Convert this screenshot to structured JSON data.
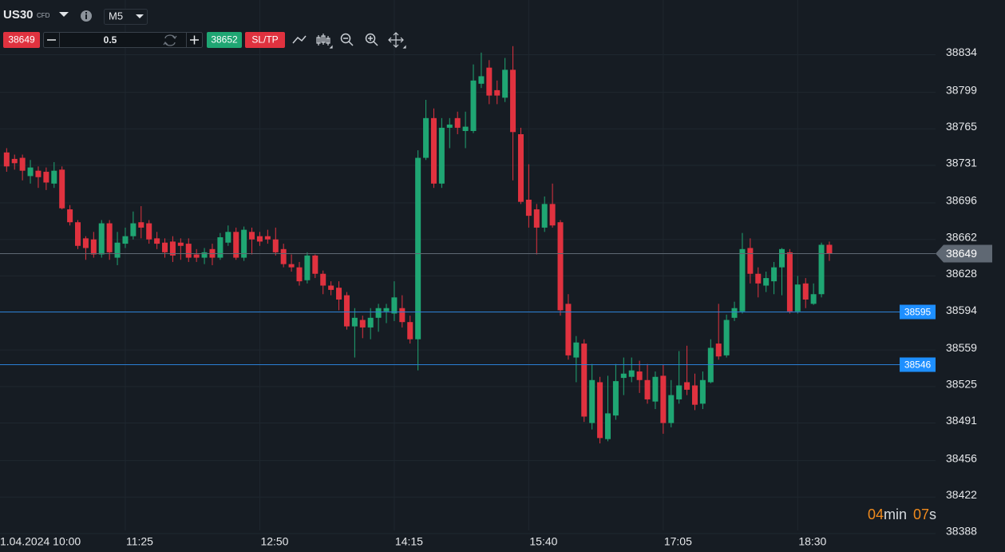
{
  "toolbar": {
    "symbol": "US30",
    "badge": "CFD",
    "timeframe": "M5",
    "bid": 38649,
    "lots": 0.5,
    "ask": 38652,
    "sltp": "SL/TP"
  },
  "timer": {
    "minutes": "04",
    "min_unit": "min",
    "seconds": "07",
    "sec_unit": "s"
  },
  "chart_data": {
    "type": "candlestick",
    "categories": [
      "1.04.2024 10:00",
      null,
      null,
      null,
      null,
      null,
      null,
      null,
      null,
      null,
      null,
      null,
      null,
      null,
      null,
      null,
      null,
      "11:25",
      null,
      null,
      null,
      null,
      null,
      null,
      null,
      null,
      null,
      null,
      null,
      null,
      null,
      null,
      null,
      null,
      "12:50",
      null,
      null,
      null,
      null,
      null,
      null,
      null,
      null,
      null,
      null,
      null,
      null,
      null,
      null,
      null,
      null,
      "14:15",
      null,
      null,
      null,
      null,
      null,
      null,
      null,
      null,
      null,
      null,
      null,
      null,
      null,
      null,
      null,
      null,
      "15:40",
      null,
      null,
      null,
      null,
      null,
      null,
      null,
      null,
      null,
      null,
      null,
      null,
      null,
      null,
      null,
      null,
      "17:05",
      null,
      null,
      null,
      null,
      null,
      null,
      null,
      null,
      null,
      null,
      null,
      null,
      null,
      null,
      null,
      null,
      "18:30",
      null,
      null,
      null,
      null
    ],
    "open": [
      null,
      null,
      38743,
      38737,
      38738,
      38721,
      38726,
      38725,
      38714,
      38727,
      38690,
      38678,
      38663,
      38662,
      38648,
      38677,
      38645,
      38658,
      38665,
      38678,
      38677,
      38663,
      38659,
      38660,
      38659,
      38658,
      38648,
      38645,
      38653,
      38645,
      38659,
      38669,
      38645,
      38669,
      38665,
      38665,
      38662,
      38653,
      38639,
      38636,
      38624,
      38647,
      38630,
      38619,
      38617,
      38610,
      38581,
      38587,
      38580,
      38589,
      38595,
      38593,
      38598,
      38585,
      38569,
      38738,
      38775,
      38714,
      38766,
      38775,
      38763,
      38763,
      38807,
      38822,
      38801,
      38794,
      38820,
      38760,
      38699,
      38690,
      38673,
      38695,
      38678,
      38602,
      38552,
      38565,
      38491,
      38529,
      38476,
      38498,
      38533,
      38534,
      38539,
      38531,
      38511,
      38535,
      38491,
      38513,
      38529,
      38526,
      38509,
      38529,
      38565,
      38554,
      38589,
      38595,
      38654,
      38630,
      38619,
      38623,
      38636,
      38650,
      38595,
      38621,
      38602,
      38611,
      38657
    ],
    "high": [
      null,
      null,
      38747,
      38741,
      38741,
      38736,
      38730,
      38729,
      38734,
      38730,
      38694,
      38680,
      38665,
      38669,
      38680,
      38680,
      38669,
      38673,
      38688,
      38693,
      38680,
      38669,
      38663,
      38665,
      38663,
      38663,
      38653,
      38654,
      38658,
      38668,
      38675,
      38673,
      38674,
      38673,
      38669,
      38671,
      38673,
      38658,
      38648,
      38641,
      38650,
      38648,
      38633,
      38623,
      38623,
      38613,
      38598,
      38591,
      38598,
      38602,
      38602,
      38623,
      38610,
      38591,
      38745,
      38792,
      38784,
      38775,
      38775,
      38781,
      38781,
      38825,
      38836,
      38829,
      38810,
      38831,
      38842,
      38766,
      38732,
      38695,
      38702,
      38714,
      38680,
      38611,
      38572,
      38569,
      38546,
      38534,
      38535,
      38546,
      38552,
      38552,
      38549,
      38546,
      38539,
      38545,
      38531,
      38558,
      38563,
      38537,
      38539,
      38569,
      38602,
      38592,
      38604,
      38668,
      38663,
      38636,
      38632,
      38641,
      38654,
      38653,
      38628,
      38626,
      38621,
      38659,
      38660
    ],
    "low": [
      null,
      null,
      38725,
      38727,
      38717,
      38714,
      38710,
      38708,
      38710,
      38690,
      38675,
      38653,
      38643,
      38645,
      38645,
      38643,
      38638,
      38654,
      38662,
      38663,
      38658,
      38653,
      38645,
      38641,
      38643,
      38641,
      38641,
      38639,
      38638,
      38643,
      38656,
      38643,
      38642,
      38648,
      38656,
      38658,
      38647,
      38636,
      38632,
      38619,
      38621,
      38626,
      38611,
      38610,
      38596,
      38578,
      38552,
      38570,
      38569,
      38576,
      38584,
      38586,
      38580,
      38565,
      38540,
      38736,
      38710,
      38710,
      38747,
      38760,
      38747,
      38761,
      38803,
      38788,
      38788,
      38790,
      38717,
      38695,
      38673,
      38648,
      38669,
      38673,
      38591,
      38550,
      38529,
      38492,
      38485,
      38472,
      38474,
      38494,
      38517,
      38529,
      38519,
      38509,
      38504,
      38481,
      38487,
      38509,
      38517,
      38503,
      38504,
      38528,
      38550,
      38552,
      38586,
      38593,
      38621,
      38608,
      38613,
      38611,
      38610,
      38593,
      38593,
      38598,
      38601,
      38608,
      38642
    ],
    "close": [
      null,
      null,
      38730,
      38733,
      38726,
      38729,
      38720,
      38715,
      38726,
      38691,
      38678,
      38656,
      38654,
      38648,
      38677,
      38650,
      38659,
      38665,
      38677,
      38673,
      38662,
      38658,
      38650,
      38647,
      38656,
      38645,
      38645,
      38650,
      38645,
      38664,
      38669,
      38645,
      38671,
      38662,
      38660,
      38662,
      38650,
      38639,
      38636,
      38623,
      38647,
      38630,
      38619,
      38615,
      38606,
      38581,
      38589,
      38580,
      38589,
      38598,
      38598,
      38608,
      38585,
      38569,
      38738,
      38775,
      38714,
      38766,
      38769,
      38766,
      38767,
      38810,
      38814,
      38796,
      38796,
      38820,
      38762,
      38697,
      38684,
      38673,
      38695,
      38675,
      38596,
      38554,
      38566,
      38497,
      38531,
      38477,
      38500,
      38530,
      38537,
      38540,
      38531,
      38513,
      38534,
      38491,
      38517,
      38526,
      38522,
      38508,
      38531,
      38561,
      38553,
      38587,
      38598,
      38653,
      38630,
      38621,
      38626,
      38636,
      38653,
      38595,
      38620,
      38606,
      38611,
      38657,
      38649
    ],
    "up_color": "#1fa673",
    "down_color": "#e0323f",
    "ylim": [
      38385,
      38885
    ],
    "yticks": [
      38834,
      38799,
      38765,
      38731,
      38696,
      38662,
      38628,
      38594,
      38559,
      38525,
      38491,
      38456,
      38422,
      38388
    ],
    "grid": true,
    "price_lines": [
      38595,
      38546
    ],
    "price_line_color": "#2a7fd4",
    "current_price": 38649,
    "current_price_color": "#5f6873"
  }
}
